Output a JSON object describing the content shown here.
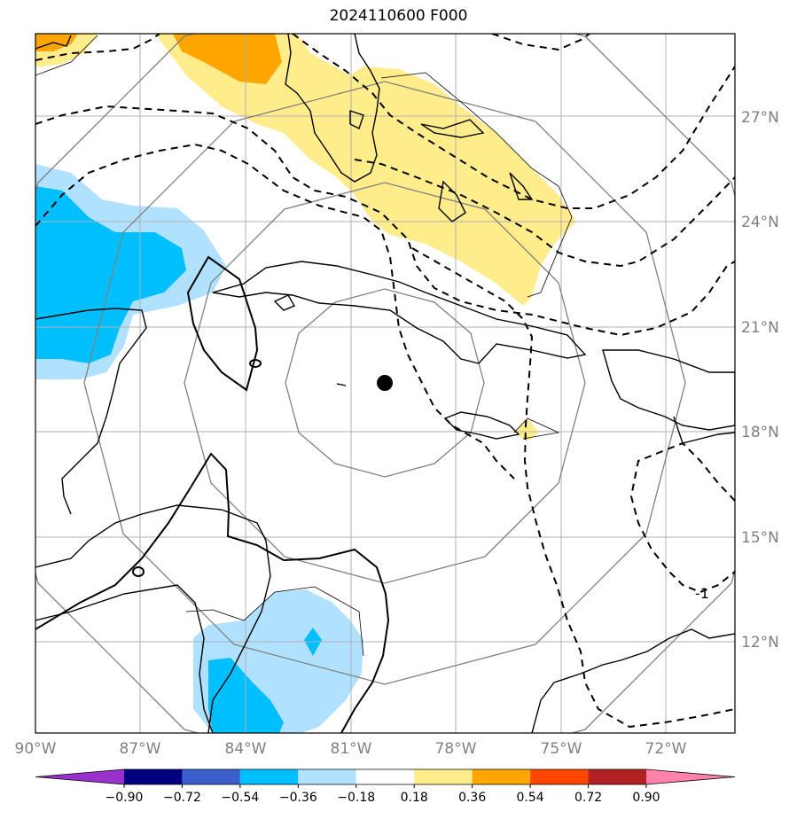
{
  "title": "2024110600 F000",
  "lat_labels": [
    "27°N",
    "24°N",
    "21°N",
    "18°N",
    "15°N",
    "12°N"
  ],
  "lon_labels": [
    "90°W",
    "87°W",
    "84°W",
    "81°W",
    "78°W",
    "75°W",
    "72°W"
  ],
  "contour_label": "-1",
  "colorbar": {
    "ticks": [
      "−0.90",
      "−0.72",
      "−0.54",
      "−0.36",
      "−0.18",
      "0.18",
      "0.36",
      "0.54",
      "0.72",
      "0.90"
    ],
    "colors": [
      "#9932cc",
      "#000080",
      "#3a5fcd",
      "#00bfff",
      "#b0e2ff",
      "#ffffff",
      "#ffec8b",
      "#ffa500",
      "#ff4500",
      "#b22222",
      "#ff82ab"
    ]
  },
  "colors": {
    "pos_light": "#ffec8b",
    "pos_mid": "#ffa500",
    "neg_light": "#b0e2ff",
    "neg_mid": "#00bfff"
  },
  "center_marker": "storm-center"
}
